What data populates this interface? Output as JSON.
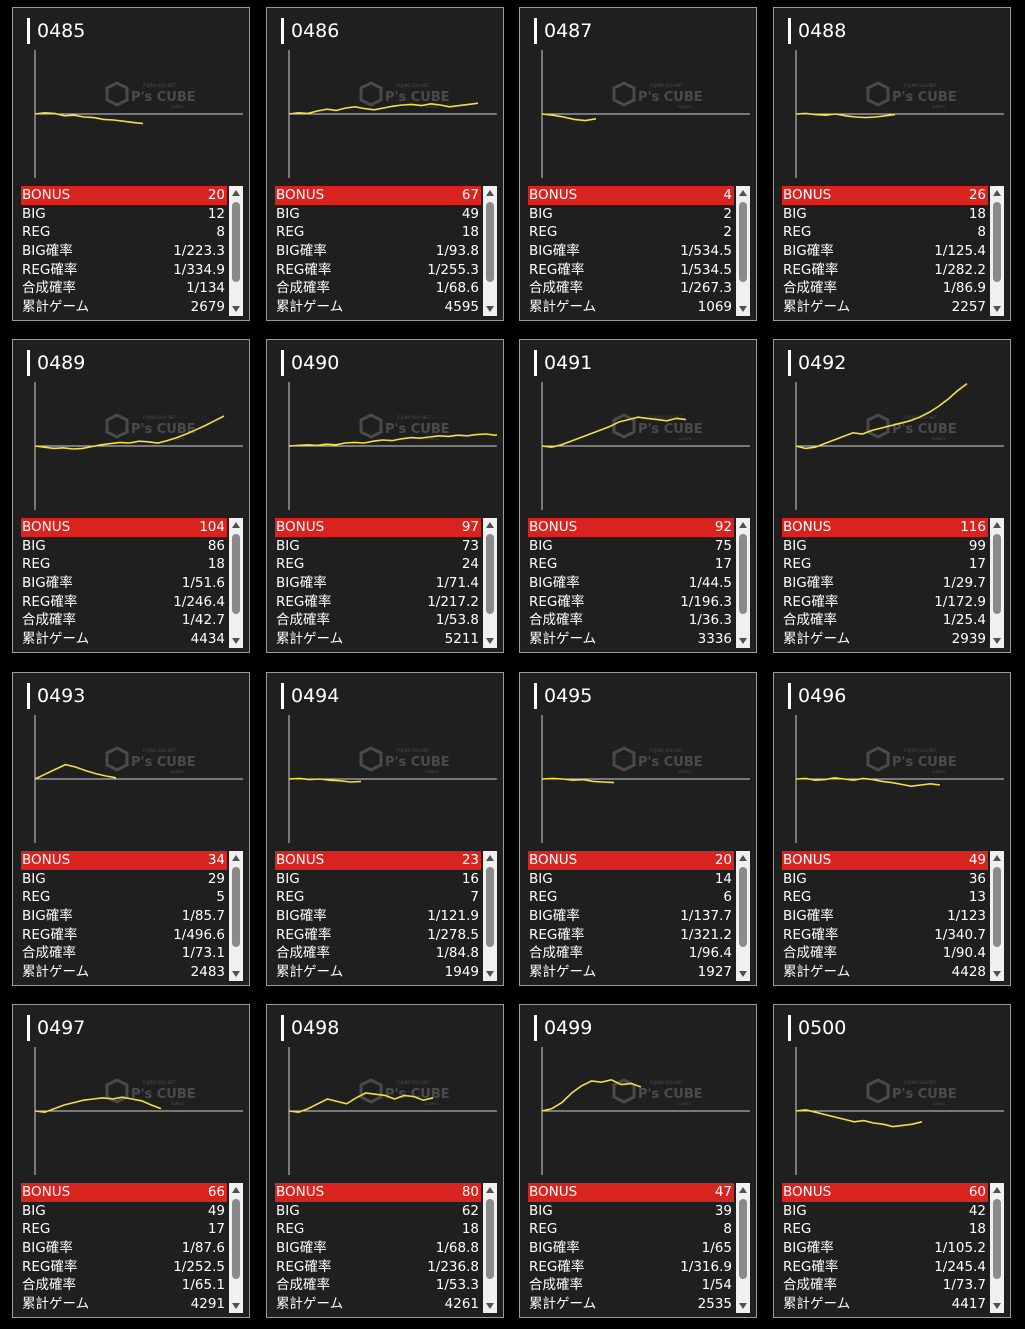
{
  "labels": {
    "bonus": "BONUS",
    "big": "BIG",
    "reg": "REG",
    "big_rate": "BIG確率",
    "reg_rate": "REG確率",
    "total_rate": "合成確率",
    "games": "累計ゲーム"
  },
  "watermark": {
    "logo": "P's CUBE",
    "top": "FUJINO SOU NET",
    "sub": "sukeru"
  },
  "colors": {
    "bonus_bg": "#d9231f",
    "line": "#f0e040",
    "card_bg": "#1f1f1f"
  },
  "icons": [
    "chevron-up-icon",
    "chevron-down-icon",
    "p-cube-logo-icon"
  ],
  "machines": [
    {
      "id": "0485",
      "bonus": "20",
      "big": "12",
      "reg": "8",
      "big_rate": "1/223.3",
      "reg_rate": "1/334.9",
      "total_rate": "1/134",
      "games": "2679",
      "trend": [
        0,
        0.02,
        0.01,
        -0.03,
        -0.02,
        -0.05,
        -0.06,
        -0.09,
        -0.1,
        -0.12,
        -0.14,
        -0.16
      ]
    },
    {
      "id": "0486",
      "bonus": "67",
      "big": "49",
      "reg": "18",
      "big_rate": "1/93.8",
      "reg_rate": "1/255.3",
      "total_rate": "1/68.6",
      "games": "4595",
      "trend": [
        0,
        0.02,
        0.01,
        0.05,
        0.08,
        0.06,
        0.1,
        0.12,
        0.09,
        0.07,
        0.1,
        0.13,
        0.15,
        0.16,
        0.14,
        0.17,
        0.15,
        0.12,
        0.14,
        0.16,
        0.18
      ]
    },
    {
      "id": "0487",
      "bonus": "4",
      "big": "2",
      "reg": "2",
      "big_rate": "1/534.5",
      "reg_rate": "1/534.5",
      "total_rate": "1/267.3",
      "games": "1069",
      "trend": [
        0,
        -0.02,
        -0.05,
        -0.09,
        -0.11,
        -0.08
      ]
    },
    {
      "id": "0488",
      "bonus": "26",
      "big": "18",
      "reg": "8",
      "big_rate": "1/125.4",
      "reg_rate": "1/282.2",
      "total_rate": "1/86.9",
      "games": "2257",
      "trend": [
        0,
        0.01,
        -0.01,
        -0.02,
        0,
        -0.03,
        -0.05,
        -0.06,
        -0.05,
        -0.03,
        -0.01
      ]
    },
    {
      "id": "0489",
      "bonus": "104",
      "big": "86",
      "reg": "18",
      "big_rate": "1/51.6",
      "reg_rate": "1/246.4",
      "total_rate": "1/42.7",
      "games": "4434",
      "trend": [
        0,
        -0.02,
        -0.04,
        -0.03,
        -0.05,
        -0.04,
        -0.01,
        0.02,
        0.04,
        0.06,
        0.05,
        0.08,
        0.07,
        0.05,
        0.09,
        0.14,
        0.2,
        0.27,
        0.34,
        0.42,
        0.5
      ]
    },
    {
      "id": "0490",
      "bonus": "97",
      "big": "73",
      "reg": "24",
      "big_rate": "1/71.4",
      "reg_rate": "1/217.2",
      "total_rate": "1/53.8",
      "games": "5211",
      "trend": [
        0,
        0.01,
        0.02,
        0.01,
        0.03,
        0.02,
        0.05,
        0.06,
        0.05,
        0.08,
        0.1,
        0.09,
        0.12,
        0.14,
        0.13,
        0.15,
        0.17,
        0.16,
        0.18,
        0.17,
        0.19,
        0.2,
        0.18,
        0.2,
        0.22
      ]
    },
    {
      "id": "0491",
      "bonus": "92",
      "big": "75",
      "reg": "17",
      "big_rate": "1/44.5",
      "reg_rate": "1/196.3",
      "total_rate": "1/36.3",
      "games": "3336",
      "trend": [
        0,
        -0.02,
        0.02,
        0.08,
        0.14,
        0.2,
        0.26,
        0.32,
        0.4,
        0.44,
        0.48,
        0.46,
        0.44,
        0.42,
        0.46,
        0.44
      ]
    },
    {
      "id": "0492",
      "bonus": "116",
      "big": "99",
      "reg": "17",
      "big_rate": "1/29.7",
      "reg_rate": "1/172.9",
      "total_rate": "1/25.4",
      "games": "2939",
      "trend": [
        0,
        -0.04,
        -0.02,
        0.04,
        0.1,
        0.16,
        0.22,
        0.2,
        0.26,
        0.3,
        0.34,
        0.38,
        0.42,
        0.48,
        0.56,
        0.66,
        0.78,
        0.92,
        1.04
      ]
    },
    {
      "id": "0493",
      "bonus": "34",
      "big": "29",
      "reg": "5",
      "big_rate": "1/85.7",
      "reg_rate": "1/496.6",
      "total_rate": "1/73.1",
      "games": "2483",
      "trend": [
        0,
        0.08,
        0.16,
        0.24,
        0.2,
        0.14,
        0.09,
        0.05,
        0.02
      ]
    },
    {
      "id": "0494",
      "bonus": "23",
      "big": "16",
      "reg": "7",
      "big_rate": "1/121.9",
      "reg_rate": "1/278.5",
      "total_rate": "1/84.8",
      "games": "1949",
      "trend": [
        0,
        0.01,
        -0.01,
        0,
        -0.02,
        -0.03,
        -0.05,
        -0.04
      ]
    },
    {
      "id": "0495",
      "bonus": "20",
      "big": "14",
      "reg": "6",
      "big_rate": "1/137.7",
      "reg_rate": "1/321.2",
      "total_rate": "1/96.4",
      "games": "1927",
      "trend": [
        0,
        0.01,
        0,
        -0.02,
        -0.01,
        -0.04,
        -0.05,
        -0.06
      ]
    },
    {
      "id": "0496",
      "bonus": "49",
      "big": "36",
      "reg": "13",
      "big_rate": "1/123",
      "reg_rate": "1/340.7",
      "total_rate": "1/90.4",
      "games": "4428",
      "trend": [
        0,
        0.01,
        -0.02,
        -0.01,
        0.02,
        0,
        -0.02,
        0.01,
        -0.01,
        -0.04,
        -0.06,
        -0.09,
        -0.12,
        -0.1,
        -0.08,
        -0.1
      ]
    },
    {
      "id": "0497",
      "bonus": "66",
      "big": "49",
      "reg": "17",
      "big_rate": "1/87.6",
      "reg_rate": "1/252.5",
      "total_rate": "1/65.1",
      "games": "4291",
      "trend": [
        0,
        -0.02,
        0.04,
        0.1,
        0.14,
        0.18,
        0.2,
        0.22,
        0.2,
        0.23,
        0.2,
        0.17,
        0.1,
        0.04
      ]
    },
    {
      "id": "0498",
      "bonus": "80",
      "big": "62",
      "reg": "18",
      "big_rate": "1/68.8",
      "reg_rate": "1/236.8",
      "total_rate": "1/53.3",
      "games": "4261",
      "trend": [
        0,
        -0.02,
        0.04,
        0.12,
        0.2,
        0.16,
        0.12,
        0.22,
        0.3,
        0.28,
        0.26,
        0.2,
        0.26,
        0.24,
        0.18,
        0.22
      ]
    },
    {
      "id": "0499",
      "bonus": "47",
      "big": "39",
      "reg": "8",
      "big_rate": "1/65",
      "reg_rate": "1/316.9",
      "total_rate": "1/54",
      "games": "2535",
      "trend": [
        0,
        0.04,
        0.14,
        0.3,
        0.42,
        0.5,
        0.48,
        0.52,
        0.44,
        0.46,
        0.4
      ]
    },
    {
      "id": "0500",
      "bonus": "60",
      "big": "42",
      "reg": "18",
      "big_rate": "1/105.2",
      "reg_rate": "1/245.4",
      "total_rate": "1/73.7",
      "games": "4417",
      "trend": [
        0,
        0.02,
        -0.02,
        -0.06,
        -0.1,
        -0.14,
        -0.18,
        -0.16,
        -0.2,
        -0.22,
        -0.26,
        -0.24,
        -0.22,
        -0.18
      ]
    }
  ]
}
